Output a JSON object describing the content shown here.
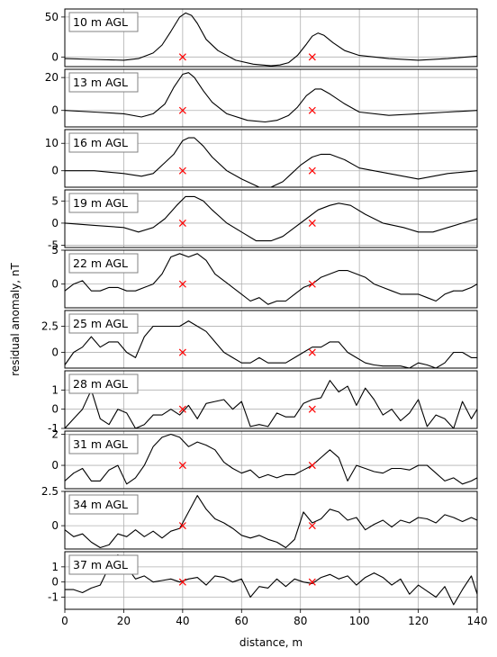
{
  "chart_data": {
    "type": "line",
    "xlabel": "distance, m",
    "ylabel": "residual anomaly, nT",
    "xlim": [
      0,
      140
    ],
    "xticks": [
      0,
      20,
      40,
      60,
      80,
      100,
      120,
      140
    ],
    "grid": true,
    "line_color": "#000000",
    "marker_color": "#ff0000",
    "marker_symbol": "x",
    "markers_x": [
      40,
      84
    ],
    "panels": [
      {
        "label": "10 m AGL",
        "ylim": [
          -12,
          60
        ],
        "yticks": [
          0,
          50
        ],
        "x": [
          0,
          10,
          20,
          25,
          30,
          33,
          36,
          39,
          41,
          43,
          45,
          48,
          52,
          58,
          64,
          70,
          73,
          76,
          79,
          82,
          84,
          86,
          88,
          91,
          95,
          100,
          110,
          120,
          130,
          140
        ],
        "y": [
          -2,
          -3,
          -4,
          -2,
          5,
          15,
          32,
          50,
          55,
          52,
          42,
          22,
          8,
          -4,
          -9,
          -11,
          -10,
          -7,
          2,
          16,
          26,
          30,
          27,
          18,
          8,
          2,
          -2,
          -4,
          -2,
          1
        ]
      },
      {
        "label": "13 m AGL",
        "ylim": [
          -10,
          25
        ],
        "yticks": [
          0,
          20
        ],
        "x": [
          0,
          10,
          20,
          26,
          30,
          34,
          37,
          40,
          42,
          44,
          47,
          50,
          55,
          62,
          68,
          72,
          76,
          79,
          82,
          85,
          87,
          90,
          95,
          100,
          110,
          120,
          130,
          140
        ],
        "y": [
          0,
          -1,
          -2,
          -4,
          -2,
          4,
          14,
          22,
          23,
          20,
          12,
          5,
          -2,
          -6,
          -7,
          -6,
          -3,
          2,
          9,
          13,
          13,
          10,
          4,
          -1,
          -3,
          -2,
          -1,
          0
        ]
      },
      {
        "label": "16 m AGL",
        "ylim": [
          -6,
          15
        ],
        "yticks": [
          0,
          10
        ],
        "x": [
          0,
          10,
          20,
          26,
          30,
          34,
          37,
          40,
          42,
          44,
          47,
          50,
          55,
          60,
          66,
          70,
          74,
          77,
          80,
          84,
          87,
          90,
          95,
          100,
          110,
          120,
          130,
          140
        ],
        "y": [
          0,
          0,
          -1,
          -2,
          -1,
          3,
          6,
          11,
          12,
          12,
          9,
          5,
          0,
          -3,
          -6,
          -6,
          -4,
          -1,
          2,
          5,
          6,
          6,
          4,
          1,
          -1,
          -3,
          -1,
          0
        ]
      },
      {
        "label": "19 m AGL",
        "ylim": [
          -5.5,
          7.5
        ],
        "yticks": [
          -5,
          0,
          5
        ],
        "x": [
          0,
          10,
          20,
          25,
          30,
          34,
          38,
          41,
          44,
          47,
          50,
          55,
          60,
          65,
          70,
          74,
          78,
          82,
          86,
          90,
          93,
          97,
          102,
          108,
          115,
          120,
          125,
          130,
          135,
          140
        ],
        "y": [
          0,
          -0.5,
          -1,
          -2,
          -1,
          1,
          4,
          6,
          6,
          5,
          3,
          0,
          -2,
          -4,
          -4,
          -3,
          -1,
          1,
          3,
          4,
          4.5,
          4,
          2,
          0,
          -1,
          -2,
          -2,
          -1,
          0,
          1
        ]
      },
      {
        "label": "22 m AGL",
        "ylim": [
          -3.5,
          5
        ],
        "yticks": [
          0,
          5
        ],
        "x": [
          0,
          3,
          6,
          9,
          12,
          15,
          18,
          21,
          24,
          27,
          30,
          33,
          36,
          39,
          42,
          45,
          48,
          51,
          54,
          57,
          60,
          63,
          66,
          69,
          72,
          75,
          78,
          81,
          84,
          87,
          90,
          93,
          96,
          99,
          102,
          105,
          108,
          111,
          114,
          117,
          120,
          123,
          126,
          129,
          132,
          135,
          138,
          140
        ],
        "y": [
          -1,
          0,
          0.5,
          -1,
          -1,
          -0.5,
          -0.5,
          -1,
          -1,
          -0.5,
          0,
          1.5,
          4,
          4.5,
          4,
          4.5,
          3.5,
          1.5,
          0.5,
          -0.5,
          -1.5,
          -2.5,
          -2,
          -3,
          -2.5,
          -2.5,
          -1.5,
          -0.5,
          0,
          1,
          1.5,
          2,
          2,
          1.5,
          1,
          0,
          -0.5,
          -1,
          -1.5,
          -1.5,
          -1.5,
          -2,
          -2.5,
          -1.5,
          -1,
          -1,
          -0.5,
          0
        ]
      },
      {
        "label": "25 m AGL",
        "ylim": [
          -1.5,
          4
        ],
        "yticks": [
          0.0,
          2.5
        ],
        "x": [
          0,
          3,
          6,
          9,
          12,
          15,
          18,
          21,
          24,
          27,
          30,
          33,
          36,
          39,
          42,
          45,
          48,
          51,
          54,
          57,
          60,
          63,
          66,
          69,
          72,
          75,
          78,
          81,
          84,
          87,
          90,
          93,
          96,
          99,
          102,
          105,
          108,
          111,
          114,
          117,
          120,
          123,
          126,
          129,
          132,
          135,
          138,
          140
        ],
        "y": [
          -1.2,
          0,
          0.5,
          1.5,
          0.5,
          1,
          1,
          0,
          -0.5,
          1.5,
          2.5,
          2.5,
          2.5,
          2.5,
          3,
          2.5,
          2,
          1,
          0,
          -0.5,
          -1,
          -1,
          -0.5,
          -1,
          -1,
          -1,
          -0.5,
          0,
          0.5,
          0.5,
          1,
          1,
          0,
          -0.5,
          -1,
          -1.2,
          -1.3,
          -1.3,
          -1.3,
          -1.5,
          -1,
          -1.2,
          -1.5,
          -1,
          0,
          0,
          -0.5,
          -0.5
        ]
      },
      {
        "label": "28 m AGL",
        "ylim": [
          -1,
          2
        ],
        "yticks": [
          -1,
          0,
          1
        ],
        "x": [
          0,
          3,
          6,
          9,
          12,
          15,
          18,
          21,
          24,
          27,
          30,
          33,
          36,
          39,
          42,
          45,
          48,
          51,
          54,
          57,
          60,
          63,
          66,
          69,
          72,
          75,
          78,
          81,
          84,
          87,
          90,
          93,
          96,
          99,
          102,
          105,
          108,
          111,
          114,
          117,
          120,
          123,
          126,
          129,
          132,
          135,
          138,
          140
        ],
        "y": [
          -1,
          -0.5,
          0,
          1,
          -0.5,
          -0.8,
          0,
          -0.2,
          -1,
          -0.8,
          -0.3,
          -0.3,
          0,
          -0.3,
          0.2,
          -0.5,
          0.3,
          0.4,
          0.5,
          0,
          0.4,
          -0.9,
          -0.8,
          -0.9,
          -0.2,
          -0.4,
          -0.4,
          0.3,
          0.5,
          0.6,
          1.5,
          0.9,
          1.2,
          0.2,
          1.1,
          0.5,
          -0.3,
          0,
          -0.6,
          -0.2,
          0.5,
          -0.9,
          -0.3,
          -0.5,
          -1,
          0.4,
          -0.5,
          0
        ]
      },
      {
        "label": "31 m AGL",
        "ylim": [
          -1.5,
          2.2
        ],
        "yticks": [
          0,
          2
        ],
        "x": [
          0,
          3,
          6,
          9,
          12,
          15,
          18,
          21,
          24,
          27,
          30,
          33,
          36,
          39,
          42,
          45,
          48,
          51,
          54,
          57,
          60,
          63,
          66,
          69,
          72,
          75,
          78,
          81,
          84,
          87,
          90,
          93,
          96,
          99,
          102,
          105,
          108,
          111,
          114,
          117,
          120,
          123,
          126,
          129,
          132,
          135,
          138,
          140
        ],
        "y": [
          -1,
          -0.5,
          -0.2,
          -1,
          -1,
          -0.3,
          0,
          -1.2,
          -0.8,
          0,
          1.2,
          1.8,
          2,
          1.8,
          1.2,
          1.5,
          1.3,
          1,
          0.2,
          -0.2,
          -0.5,
          -0.3,
          -0.8,
          -0.6,
          -0.8,
          -0.6,
          -0.6,
          -0.3,
          0,
          0.5,
          1,
          0.5,
          -1,
          0,
          -0.2,
          -0.4,
          -0.5,
          -0.2,
          -0.2,
          -0.3,
          0,
          0,
          -0.5,
          -1,
          -0.8,
          -1.2,
          -1,
          -0.8
        ]
      },
      {
        "label": "34 m AGL",
        "ylim": [
          -1.7,
          2.5
        ],
        "yticks": [
          0.0,
          2.5
        ],
        "x": [
          0,
          3,
          6,
          9,
          12,
          15,
          18,
          21,
          24,
          27,
          30,
          33,
          36,
          39,
          42,
          45,
          48,
          51,
          54,
          57,
          60,
          63,
          66,
          69,
          72,
          75,
          78,
          81,
          84,
          87,
          90,
          93,
          96,
          99,
          102,
          105,
          108,
          111,
          114,
          117,
          120,
          123,
          126,
          129,
          132,
          135,
          138,
          140
        ],
        "y": [
          -0.3,
          -0.8,
          -0.6,
          -1.2,
          -1.6,
          -1.4,
          -0.6,
          -0.8,
          -0.3,
          -0.8,
          -0.4,
          -0.9,
          -0.4,
          -0.2,
          1,
          2.2,
          1.2,
          0.5,
          0.2,
          -0.2,
          -0.7,
          -0.9,
          -0.7,
          -1,
          -1.2,
          -1.6,
          -1,
          1,
          0.2,
          0.5,
          1.2,
          1,
          0.4,
          0.6,
          -0.3,
          0.1,
          0.4,
          -0.1,
          0.4,
          0.2,
          0.6,
          0.5,
          0.2,
          0.8,
          0.6,
          0.3,
          0.6,
          0.4
        ]
      },
      {
        "label": "37 m AGL",
        "ylim": [
          -1.8,
          2
        ],
        "yticks": [
          -1,
          0,
          1
        ],
        "x": [
          0,
          3,
          6,
          9,
          12,
          15,
          18,
          21,
          24,
          27,
          30,
          33,
          36,
          39,
          42,
          45,
          48,
          51,
          54,
          57,
          60,
          63,
          66,
          69,
          72,
          75,
          78,
          81,
          84,
          87,
          90,
          93,
          96,
          99,
          102,
          105,
          108,
          111,
          114,
          117,
          120,
          123,
          126,
          129,
          132,
          135,
          138,
          140
        ],
        "y": [
          -0.5,
          -0.5,
          -0.7,
          -0.4,
          -0.2,
          1,
          1.8,
          1,
          0.2,
          0.4,
          0,
          0.1,
          0.2,
          0,
          0.2,
          0.3,
          -0.2,
          0.4,
          0.3,
          0,
          0.2,
          -1,
          -0.3,
          -0.4,
          0.2,
          -0.3,
          0.2,
          0,
          -0.1,
          0.3,
          0.5,
          0.2,
          0.4,
          -0.2,
          0.3,
          0.6,
          0.3,
          -0.2,
          0.2,
          -0.8,
          -0.2,
          -0.6,
          -1,
          -0.3,
          -1.5,
          -0.5,
          0.4,
          -0.8
        ]
      }
    ]
  }
}
